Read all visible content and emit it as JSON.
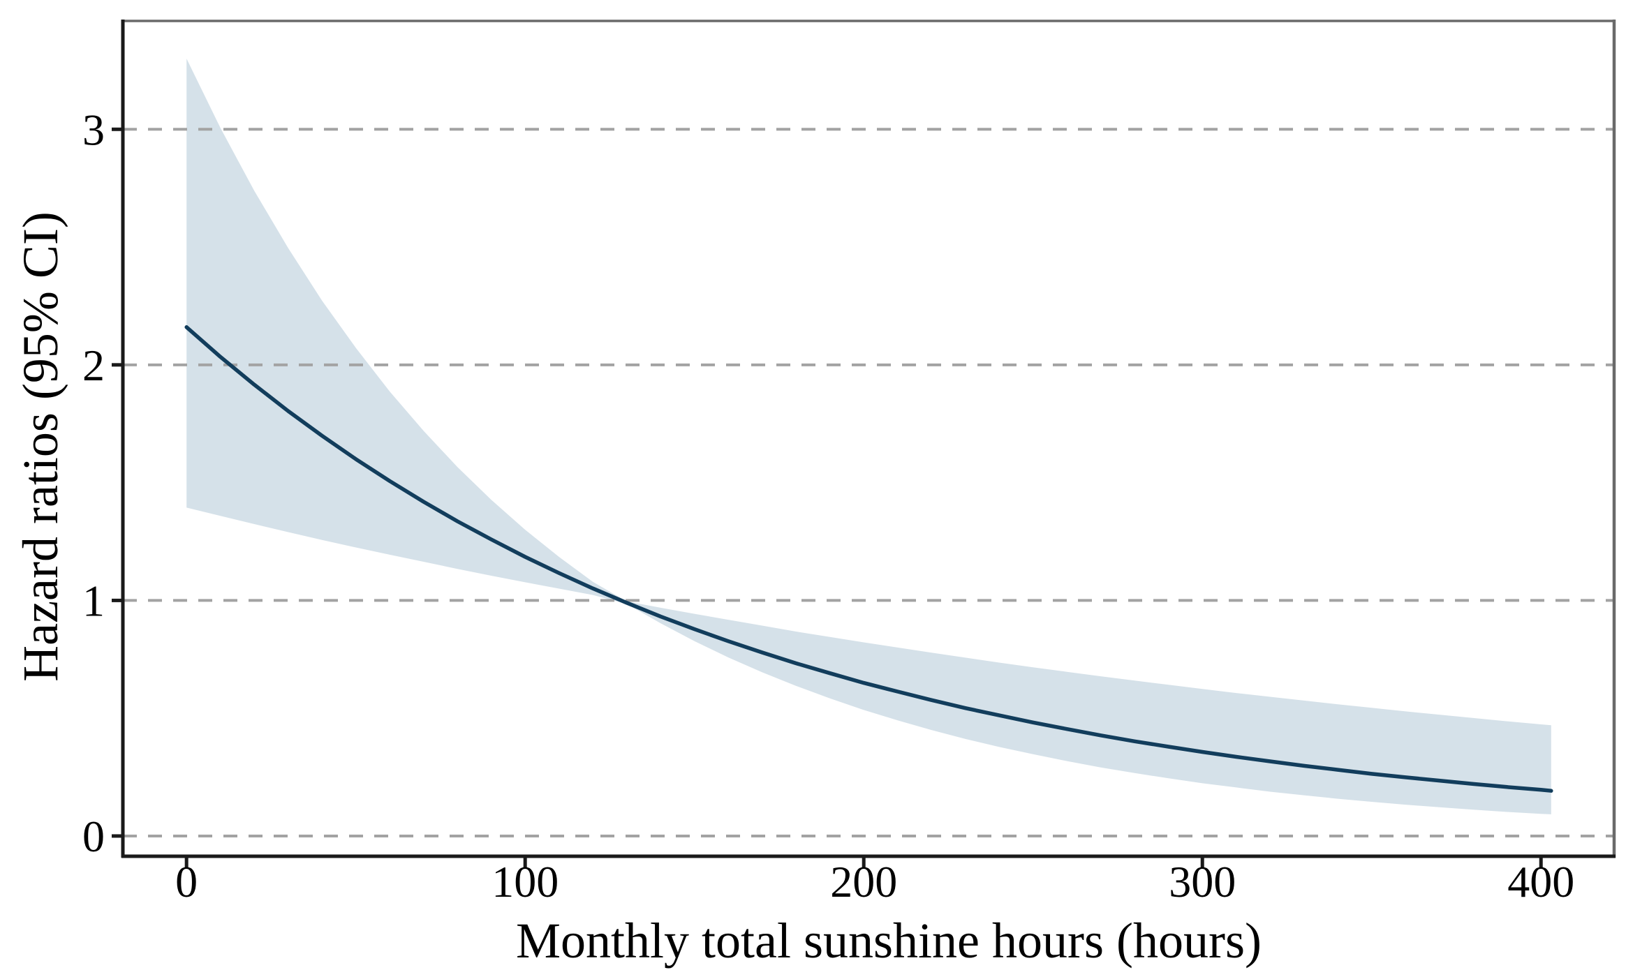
{
  "figure": {
    "kind": "line chart with 95% confidence band",
    "title": "",
    "background": "#ffffff"
  },
  "colors": {
    "hr_line": "#123d5c",
    "ci_band": "#d5e1e9",
    "gridline": "#a3a3a3",
    "spine_dark": "#1a1a1a",
    "spine_light": "#6a6a6a",
    "text": "#000000"
  },
  "chart_data": {
    "type": "line",
    "title": "",
    "xlabel": "Monthly total sunshine hours (hours)",
    "ylabel": "Hazard ratios (95% CI)",
    "xlim": [
      -18.8,
      421.6
    ],
    "ylim": [
      -0.086,
      3.46
    ],
    "x_ticks": [
      0,
      100,
      200,
      300,
      400
    ],
    "y_ticks": [
      0,
      1,
      2,
      3
    ],
    "grid": "horizontal dashed lines at each y tick",
    "legend_position": "none",
    "reference_value": 1.0,
    "hr_equals_1_at_x": 128,
    "x": [
      0,
      10,
      20,
      30,
      40,
      50,
      60,
      70,
      80,
      90,
      100,
      110,
      120,
      130,
      140,
      150,
      160,
      170,
      180,
      190,
      200,
      210,
      220,
      230,
      240,
      250,
      260,
      270,
      280,
      290,
      300,
      310,
      320,
      330,
      340,
      350,
      360,
      370,
      380,
      390,
      400,
      403
    ],
    "series": [
      {
        "name": "Hazard ratio",
        "role": "line",
        "color": "#123d5c",
        "values": [
          2.16,
          2.034,
          1.916,
          1.804,
          1.699,
          1.6,
          1.507,
          1.419,
          1.336,
          1.259,
          1.185,
          1.116,
          1.051,
          0.99,
          0.932,
          0.878,
          0.827,
          0.779,
          0.733,
          0.691,
          0.65,
          0.613,
          0.577,
          0.543,
          0.512,
          0.482,
          0.454,
          0.427,
          0.402,
          0.379,
          0.357,
          0.336,
          0.317,
          0.298,
          0.281,
          0.264,
          0.249,
          0.235,
          0.221,
          0.208,
          0.196,
          0.192
        ]
      },
      {
        "name": "95% CI upper",
        "role": "band-upper",
        "color": "#d5e1e9",
        "values": [
          3.3,
          3.006,
          2.739,
          2.496,
          2.273,
          2.072,
          1.887,
          1.72,
          1.566,
          1.427,
          1.3,
          1.185,
          1.079,
          0.996,
          0.969,
          0.943,
          0.918,
          0.893,
          0.868,
          0.845,
          0.822,
          0.8,
          0.778,
          0.757,
          0.736,
          0.716,
          0.697,
          0.678,
          0.66,
          0.642,
          0.624,
          0.607,
          0.591,
          0.575,
          0.559,
          0.544,
          0.529,
          0.515,
          0.501,
          0.487,
          0.474,
          0.47
        ]
      },
      {
        "name": "95% CI lower",
        "role": "band-lower",
        "color": "#d5e1e9",
        "values": [
          1.394,
          1.359,
          1.324,
          1.29,
          1.257,
          1.225,
          1.194,
          1.164,
          1.134,
          1.105,
          1.077,
          1.05,
          1.023,
          0.985,
          0.903,
          0.827,
          0.758,
          0.695,
          0.637,
          0.584,
          0.535,
          0.491,
          0.45,
          0.412,
          0.378,
          0.347,
          0.318,
          0.291,
          0.267,
          0.245,
          0.224,
          0.206,
          0.188,
          0.173,
          0.158,
          0.145,
          0.133,
          0.122,
          0.112,
          0.102,
          0.094,
          0.092
        ]
      }
    ]
  }
}
